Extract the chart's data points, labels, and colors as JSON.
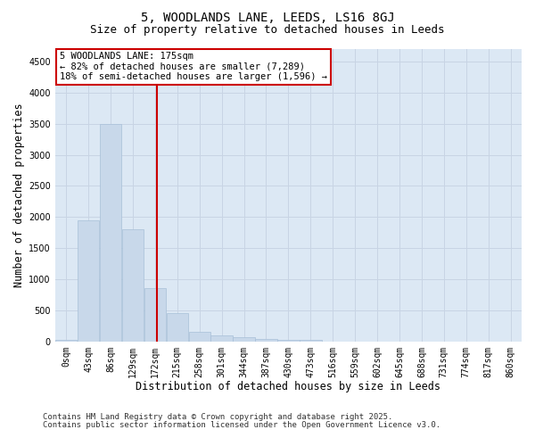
{
  "title": "5, WOODLANDS LANE, LEEDS, LS16 8GJ",
  "subtitle": "Size of property relative to detached houses in Leeds",
  "xlabel": "Distribution of detached houses by size in Leeds",
  "ylabel": "Number of detached properties",
  "bin_labels": [
    "0sqm",
    "43sqm",
    "86sqm",
    "129sqm",
    "172sqm",
    "215sqm",
    "258sqm",
    "301sqm",
    "344sqm",
    "387sqm",
    "430sqm",
    "473sqm",
    "516sqm",
    "559sqm",
    "602sqm",
    "645sqm",
    "688sqm",
    "731sqm",
    "774sqm",
    "817sqm",
    "860sqm"
  ],
  "bar_heights": [
    30,
    1950,
    3500,
    1800,
    850,
    450,
    160,
    100,
    70,
    40,
    25,
    30,
    0,
    0,
    0,
    0,
    0,
    0,
    0,
    0,
    0
  ],
  "bar_color": "#c8d8ea",
  "bar_edge_color": "#a8c0d8",
  "grid_color": "#c8d4e4",
  "background_color": "#dce8f4",
  "vline_color": "#cc0000",
  "annotation_text": "5 WOODLANDS LANE: 175sqm\n← 82% of detached houses are smaller (7,289)\n18% of semi-detached houses are larger (1,596) →",
  "annotation_box_color": "#cc0000",
  "ylim": [
    0,
    4700
  ],
  "yticks": [
    0,
    500,
    1000,
    1500,
    2000,
    2500,
    3000,
    3500,
    4000,
    4500
  ],
  "footnote1": "Contains HM Land Registry data © Crown copyright and database right 2025.",
  "footnote2": "Contains public sector information licensed under the Open Government Licence v3.0.",
  "title_fontsize": 10,
  "subtitle_fontsize": 9,
  "axis_label_fontsize": 8.5,
  "tick_fontsize": 7,
  "annotation_fontsize": 7.5,
  "footnote_fontsize": 6.5,
  "fig_width": 6.0,
  "fig_height": 5.0,
  "fig_dpi": 100
}
